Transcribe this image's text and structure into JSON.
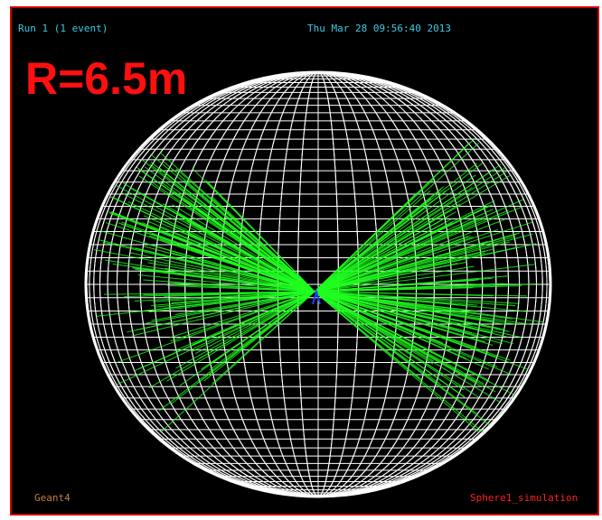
{
  "header": {
    "run": "Run 1 (1 event)",
    "date": "Thu Mar 28 09:56:40 2013"
  },
  "annotation": "R=6.5m",
  "footer": {
    "left": "Geant4",
    "right": "Sphere1_simulation"
  }
}
